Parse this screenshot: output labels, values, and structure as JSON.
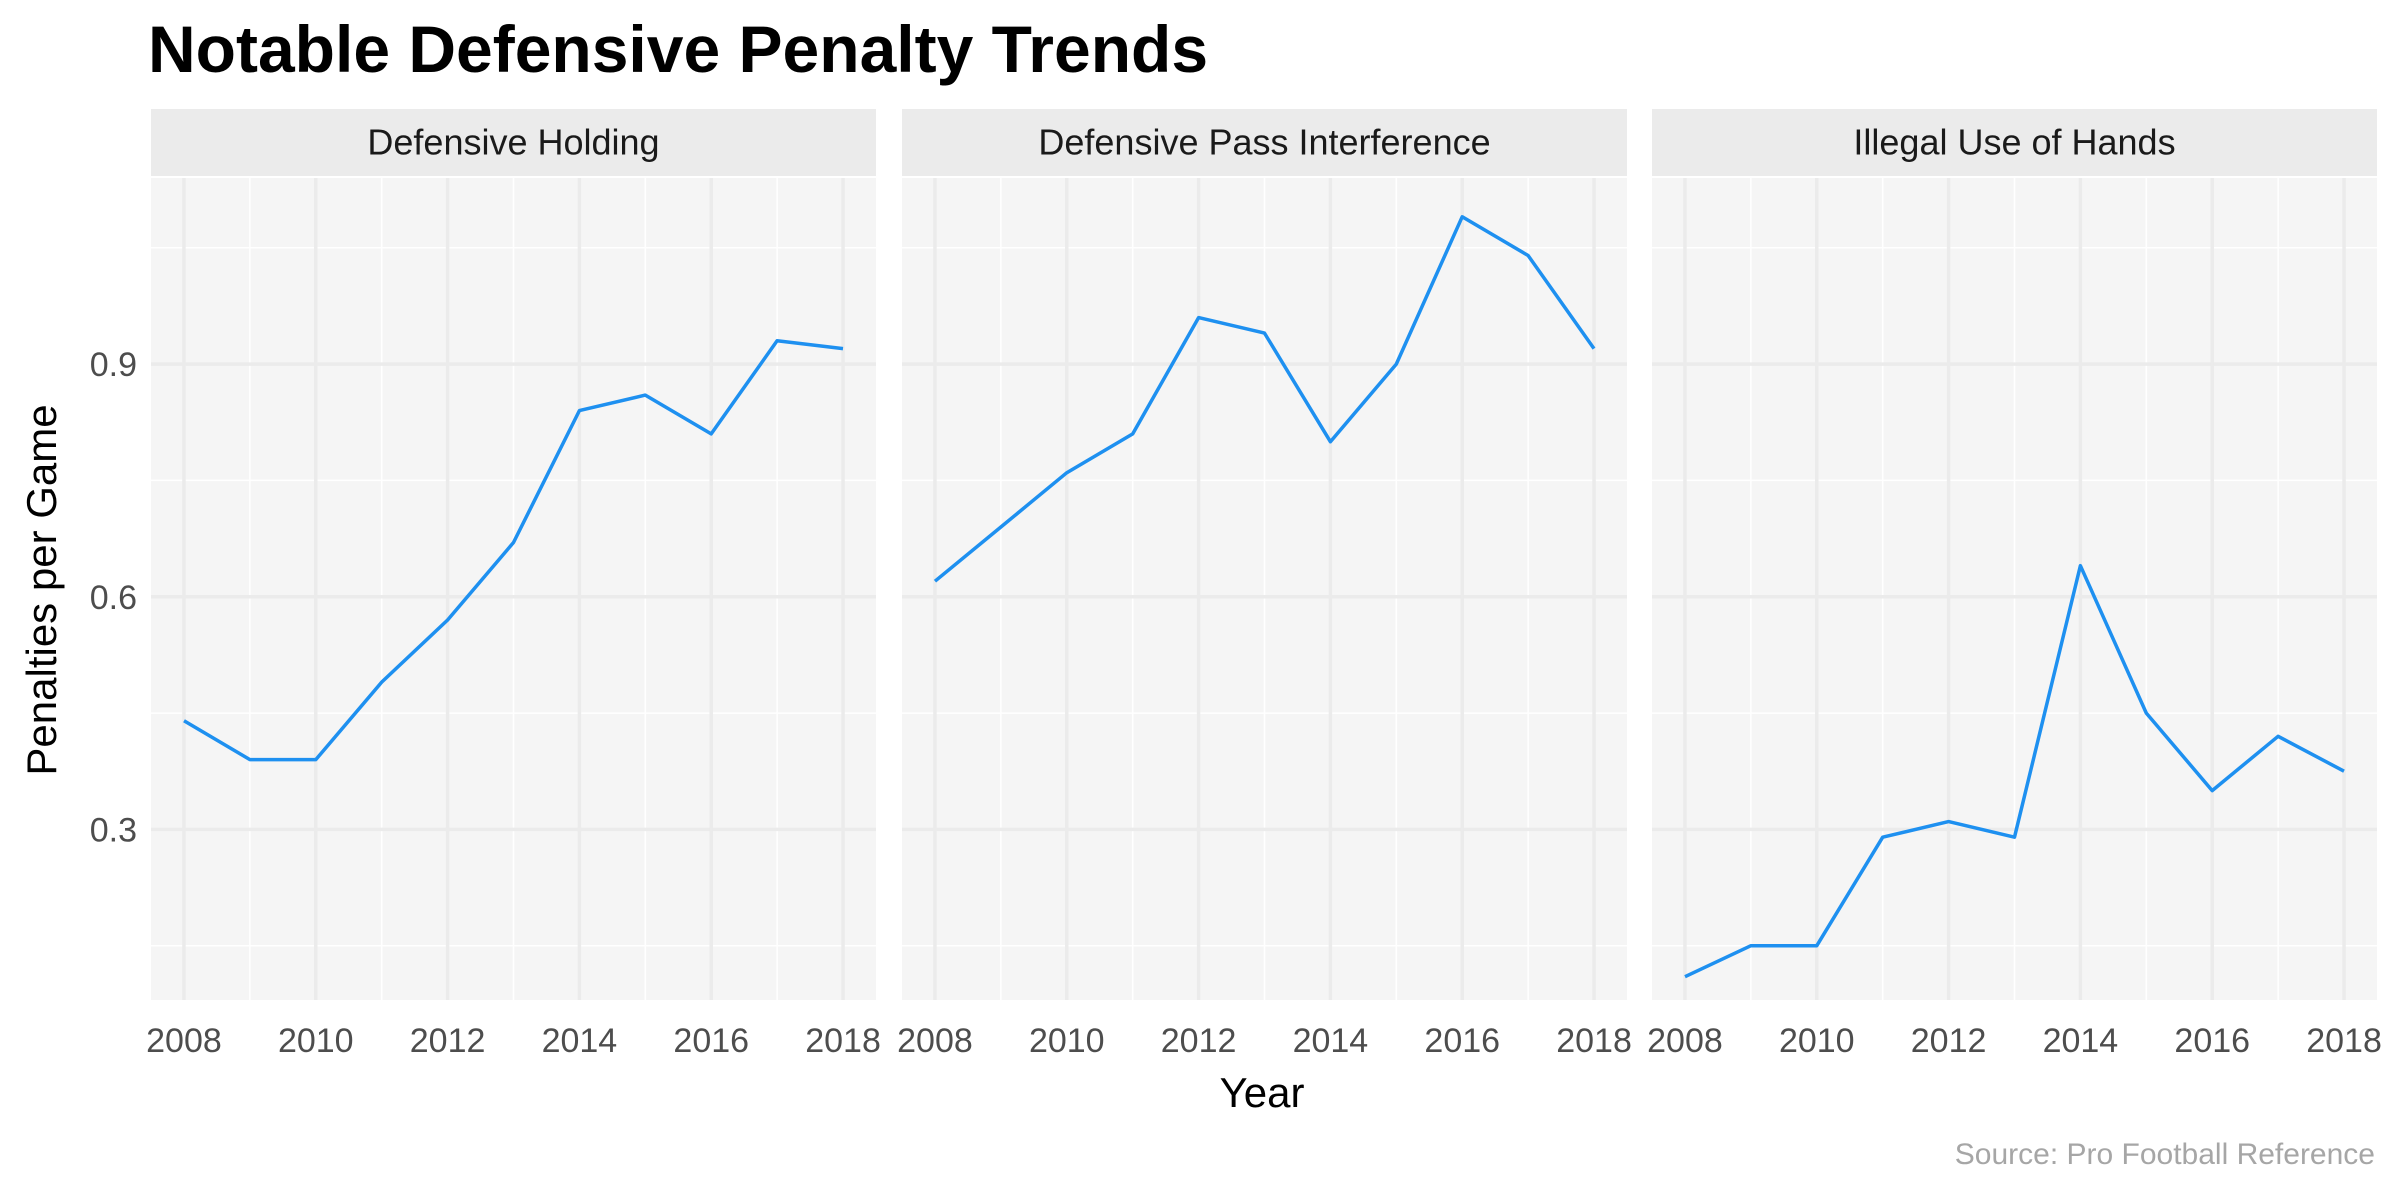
{
  "chart_data": {
    "type": "line",
    "title": "Notable Defensive Penalty Trends",
    "xlabel": "Year",
    "ylabel": "Penalties per Game",
    "caption": "Source: Pro Football Reference",
    "x": [
      2008,
      2009,
      2010,
      2011,
      2012,
      2013,
      2014,
      2015,
      2016,
      2017,
      2018
    ],
    "xticks": [
      "2008",
      "2010",
      "2012",
      "2014",
      "2016",
      "2018"
    ],
    "yticks": [
      "0.3",
      "0.6",
      "0.9"
    ],
    "xlim": [
      2007.5,
      2018.5
    ],
    "ylim": [
      0.08,
      1.14
    ],
    "grid": true,
    "line_color": "#1E90F0",
    "panel_background": "#F5F5F5",
    "strip_background": "#EBEBEB",
    "panels": [
      {
        "name": "Defensive Holding",
        "values": [
          0.44,
          0.39,
          0.39,
          0.49,
          0.57,
          0.67,
          0.84,
          0.86,
          0.81,
          0.93,
          0.92
        ]
      },
      {
        "name": "Defensive Pass Interference",
        "values": [
          0.62,
          0.69,
          0.76,
          0.81,
          0.96,
          0.94,
          0.8,
          0.9,
          1.09,
          1.04,
          0.92
        ]
      },
      {
        "name": "Illegal Use of Hands",
        "values": [
          0.11,
          0.15,
          0.15,
          0.29,
          0.31,
          0.29,
          0.64,
          0.45,
          0.35,
          0.42,
          0.375
        ]
      }
    ]
  }
}
